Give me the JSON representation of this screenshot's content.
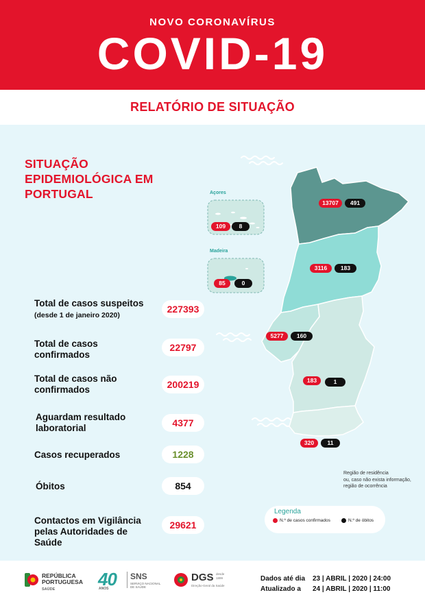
{
  "header": {
    "supertitle": "NOVO CORONAVÍRUS",
    "title": "COVID-19",
    "subtitle": "RELATÓRIO DE SITUAÇÃO"
  },
  "section": {
    "title": "SITUAÇÃO EPIDEMIOLÓGICA EM PORTUGAL"
  },
  "stats": {
    "suspeitos": {
      "label": "Total de casos suspeitos",
      "note": "(desde 1 de janeiro 2020)",
      "value": "227393"
    },
    "confirmados": {
      "label": "Total de casos confirmados",
      "value": "22797"
    },
    "nao_confirmados": {
      "label": "Total de casos não confirmados",
      "value": "200219"
    },
    "aguardam": {
      "label": "Aguardam resultado laboratorial",
      "value": "4377"
    },
    "recuperados": {
      "label": "Casos recuperados",
      "value": "1228"
    },
    "obitos": {
      "label": "Óbitos",
      "value": "854"
    },
    "contactos": {
      "label": "Contactos em Vigilância pelas Autoridades de Saúde",
      "value": "29621"
    }
  },
  "islands": {
    "acores": {
      "name": "Açores",
      "cases": "109",
      "deaths": "8"
    },
    "madeira": {
      "name": "Madeira",
      "cases": "85",
      "deaths": "0"
    }
  },
  "regions": {
    "norte": {
      "cases": "13707",
      "deaths": "491"
    },
    "centro": {
      "cases": "3116",
      "deaths": "183"
    },
    "lisboa": {
      "cases": "5277",
      "deaths": "160"
    },
    "alentejo": {
      "cases": "183",
      "deaths": "1"
    },
    "algarve": {
      "cases": "320",
      "deaths": "11"
    }
  },
  "region_colors": {
    "norte": "#5c9690",
    "centro": "#8fdcd6",
    "lisboa": "#bfe6e0",
    "alentejo": "#cfe9e4",
    "algarve": "#dcefeb"
  },
  "map_note": {
    "line1": "Região de residência",
    "line2": "ou, caso não exista informação,",
    "line3": "região de ocorrência"
  },
  "legend": {
    "title": "Legenda",
    "cases_label": "N.º de casos confirmados",
    "deaths_label": "N.º de óbitos"
  },
  "footer": {
    "logo_rp_line1": "REPÚBLICA",
    "logo_rp_line2": "PORTUGUESA",
    "logo_rp_sub": "SAÚDE",
    "logo_40": "40",
    "logo_40_sub": "ANOS",
    "logo_sns": "SNS",
    "logo_sns_line1": "SERVIÇO NACIONAL",
    "logo_sns_line2": "DE SAÚDE",
    "logo_dgs": "DGS",
    "logo_dgs_sub": "Direção-Geral da Saúde",
    "logo_dgs_since_line1": "desde",
    "logo_dgs_since_line2": "1899",
    "dates_label": "Dados até dia",
    "dates_value": "23 | ABRIL | 2020 | 24:00",
    "updated_label": "Atualizado a",
    "updated_value": "24 | ABRIL | 2020 | 11:00"
  }
}
